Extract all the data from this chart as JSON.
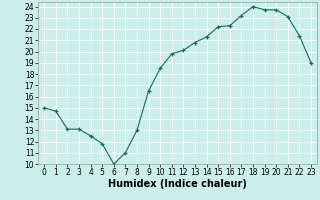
{
  "title": "",
  "xlabel": "Humidex (Indice chaleur)",
  "ylabel": "",
  "x": [
    0,
    1,
    2,
    3,
    4,
    5,
    6,
    7,
    8,
    9,
    10,
    11,
    12,
    13,
    14,
    15,
    16,
    17,
    18,
    19,
    20,
    21,
    22,
    23
  ],
  "y": [
    15.0,
    14.7,
    13.1,
    13.1,
    12.5,
    11.8,
    10.0,
    11.0,
    13.0,
    16.5,
    18.5,
    19.8,
    20.1,
    20.8,
    21.3,
    22.2,
    22.3,
    23.2,
    24.0,
    23.7,
    23.7,
    23.1,
    21.4,
    19.0
  ],
  "line_color": "#1a6b5a",
  "marker": "+",
  "marker_size": 3,
  "bg_color": "#cceee8",
  "grid_color": "#ffffff",
  "xlim": [
    -0.5,
    23.5
  ],
  "ylim": [
    10,
    24.4
  ],
  "yticks": [
    10,
    11,
    12,
    13,
    14,
    15,
    16,
    17,
    18,
    19,
    20,
    21,
    22,
    23,
    24
  ],
  "xticks": [
    0,
    1,
    2,
    3,
    4,
    5,
    6,
    7,
    8,
    9,
    10,
    11,
    12,
    13,
    14,
    15,
    16,
    17,
    18,
    19,
    20,
    21,
    22,
    23
  ],
  "tick_fontsize": 5.5,
  "xlabel_fontsize": 7,
  "line_width": 0.8
}
